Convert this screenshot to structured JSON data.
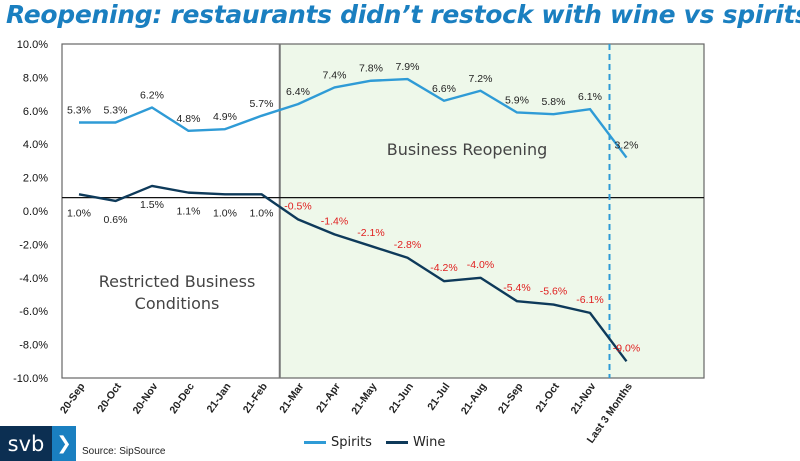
{
  "title": "Reopening: restaurants didn’t restock with wine vs spirits",
  "source": "Source: SipSource",
  "logo": {
    "text": "svb",
    "icon": "chevron-right-icon"
  },
  "colors": {
    "spirits": "#2f9bd6",
    "wine": "#0e3a5a",
    "title": "#1a7fc0",
    "negative": "#e02020",
    "shade": "#eef8ea"
  },
  "chart_data": {
    "type": "line",
    "categories": [
      "20-Sep",
      "20-Oct",
      "20-Nov",
      "20-Dec",
      "21-Jan",
      "21-Feb",
      "21-Mar",
      "21-Apr",
      "21-May",
      "21-Jun",
      "21-Jul",
      "21-Aug",
      "21-Sep",
      "21-Oct",
      "21-Nov",
      "Last 3 Months"
    ],
    "series": [
      {
        "name": "Spirits",
        "values": [
          5.3,
          5.3,
          6.2,
          4.8,
          4.9,
          5.7,
          6.4,
          7.4,
          7.8,
          7.9,
          6.6,
          7.2,
          5.9,
          5.8,
          6.1,
          3.2
        ],
        "labels": [
          "5.3%",
          "5.3%",
          "6.2%",
          "4.8%",
          "4.9%",
          "5.7%",
          "6.4%",
          "7.4%",
          "7.8%",
          "7.9%",
          "6.6%",
          "7.2%",
          "5.9%",
          "5.8%",
          "6.1%",
          "3.2%"
        ]
      },
      {
        "name": "Wine",
        "values": [
          1.0,
          0.6,
          1.5,
          1.1,
          1.0,
          1.0,
          -0.5,
          -1.4,
          -2.1,
          -2.8,
          -4.2,
          -4.0,
          -5.4,
          -5.6,
          -6.1,
          -9.0
        ],
        "labels": [
          "1.0%",
          "0.6%",
          "1.5%",
          "1.1%",
          "1.0%",
          "1.0%",
          "-0.5%",
          "-1.4%",
          "-2.1%",
          "-2.8%",
          "-4.2%",
          "-4.0%",
          "-5.4%",
          "-5.6%",
          "-6.1%",
          "-9.0%"
        ]
      }
    ],
    "ylim": [
      -10,
      10
    ],
    "yticks": [
      10,
      8,
      6,
      4,
      2,
      0,
      -2,
      -4,
      -6,
      -8,
      -10
    ],
    "ytick_labels": [
      "10.0%",
      "8.0%",
      "6.0%",
      "4.0%",
      "2.0%",
      "0.0%",
      "-2.0%",
      "-4.0%",
      "-6.0%",
      "-8.0%",
      "-10.0%"
    ],
    "reference_line": 0.8,
    "annotations": {
      "restricted": [
        "Restricted Business",
        "Conditions"
      ],
      "reopening": "Business Reopening"
    },
    "legend": "bottom-center",
    "grid": false
  }
}
